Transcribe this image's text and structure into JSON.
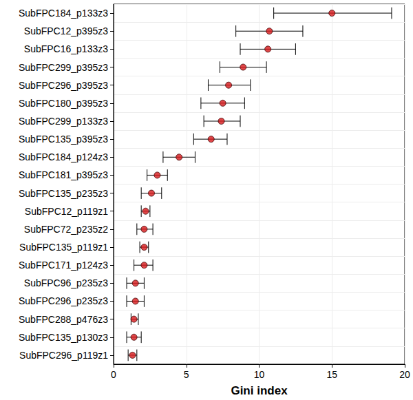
{
  "chart_data": {
    "type": "scatter",
    "orientation": "horizontal",
    "xlabel": "Gini index",
    "categories": [
      "SubFPC184_p133z3",
      "SubFPC12_p395z3",
      "SubFPC16_p133z3",
      "SubFPC299_p395z3",
      "SubFPC296_p395z3",
      "SubFPC180_p395z3",
      "SubFPC299_p133z3",
      "SubFPC135_p395z3",
      "SubFPC184_p124z3",
      "SubFPC181_p395z3",
      "SubFPC135_p235z3",
      "SubFPC12_p119z1",
      "SubFPC72_p235z2",
      "SubFPC135_p119z1",
      "SubFPC171_p124z3",
      "SubFPC96_p235z3",
      "SubFPC296_p235z3",
      "SubFPC288_p476z3",
      "SubFPC135_p130z3",
      "SubFPC296_p119z1"
    ],
    "values": [
      15.0,
      10.7,
      10.6,
      8.9,
      7.9,
      7.5,
      7.4,
      6.7,
      4.5,
      3.0,
      2.6,
      2.2,
      2.1,
      2.1,
      2.1,
      1.5,
      1.5,
      1.4,
      1.4,
      1.3
    ],
    "error_low": [
      11.0,
      8.4,
      8.7,
      7.3,
      6.5,
      6.0,
      6.2,
      5.5,
      3.4,
      2.3,
      1.9,
      1.9,
      1.6,
      1.8,
      1.4,
      0.9,
      0.9,
      1.2,
      0.9,
      1.0
    ],
    "error_high": [
      19.1,
      13.0,
      12.5,
      10.5,
      9.4,
      9.0,
      8.7,
      7.8,
      5.6,
      3.7,
      3.3,
      2.5,
      2.7,
      2.4,
      2.7,
      2.1,
      2.1,
      1.7,
      1.9,
      1.6
    ],
    "color": "#d7191c",
    "marker": "circle",
    "xlim": [
      0,
      20
    ],
    "xticks": [
      0,
      5,
      10,
      15,
      20
    ],
    "grid": true
  }
}
